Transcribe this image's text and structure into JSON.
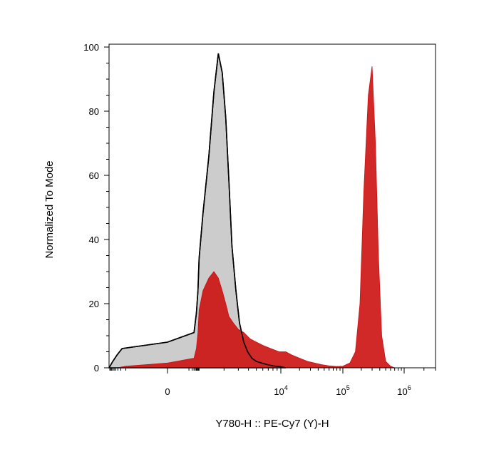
{
  "chart_data": {
    "type": "area",
    "title": "",
    "xlabel": "Y780-H :: PE-Cy7 (Y)-H",
    "ylabel": "Normalized To Mode",
    "ylim": [
      0,
      100
    ],
    "x_scale": "biexponential",
    "y_ticks": [
      "0",
      "20",
      "40",
      "60",
      "80",
      "100"
    ],
    "x_ticks": [
      {
        "base": "0",
        "exp": ""
      },
      {
        "base": "10",
        "exp": "4"
      },
      {
        "base": "10",
        "exp": "5"
      },
      {
        "base": "10",
        "exp": "6"
      }
    ],
    "grid": false,
    "legend": "none",
    "series": [
      {
        "color_fill": "#cccccc",
        "color_line": "#000000",
        "x": [
          -3000,
          -1800,
          -1000,
          -500,
          0,
          300,
          500,
          700,
          900,
          1100,
          1300,
          1500,
          1700,
          1900,
          2100,
          2300,
          2500,
          2800,
          3100,
          3500,
          3900,
          4400,
          5000,
          5800,
          6800,
          8000,
          10000,
          12000
        ],
        "y": [
          0,
          2,
          4,
          6,
          8,
          11,
          17,
          24,
          34,
          48,
          66,
          86,
          98,
          92,
          78,
          58,
          38,
          24,
          14,
          8,
          5,
          3,
          2,
          1.5,
          1,
          0.6,
          0.3,
          0
        ]
      },
      {
        "color_fill": "#cc1111",
        "color_line": "#cc1111",
        "x": [
          -1000,
          -300,
          0,
          300,
          500,
          700,
          900,
          1100,
          1300,
          1500,
          1700,
          1900,
          2100,
          2300,
          2600,
          3000,
          3500,
          4200,
          5000,
          6000,
          7500,
          9500,
          12000,
          15000,
          20000,
          27000,
          35000,
          45000,
          60000,
          80000,
          100000,
          130000,
          160000,
          190000,
          220000,
          260000,
          300000,
          340000,
          380000,
          430000,
          500000,
          600000,
          700000
        ],
        "y": [
          0,
          0.5,
          1.5,
          3,
          6,
          11,
          18,
          24,
          28,
          30,
          28,
          24,
          20,
          16,
          14,
          12,
          11,
          9,
          8,
          7,
          6,
          5,
          5,
          4,
          3,
          2,
          1.5,
          1,
          0.6,
          0.4,
          0.5,
          1.5,
          5,
          20,
          55,
          85,
          94,
          70,
          35,
          10,
          2,
          0.5,
          0
        ]
      }
    ]
  }
}
